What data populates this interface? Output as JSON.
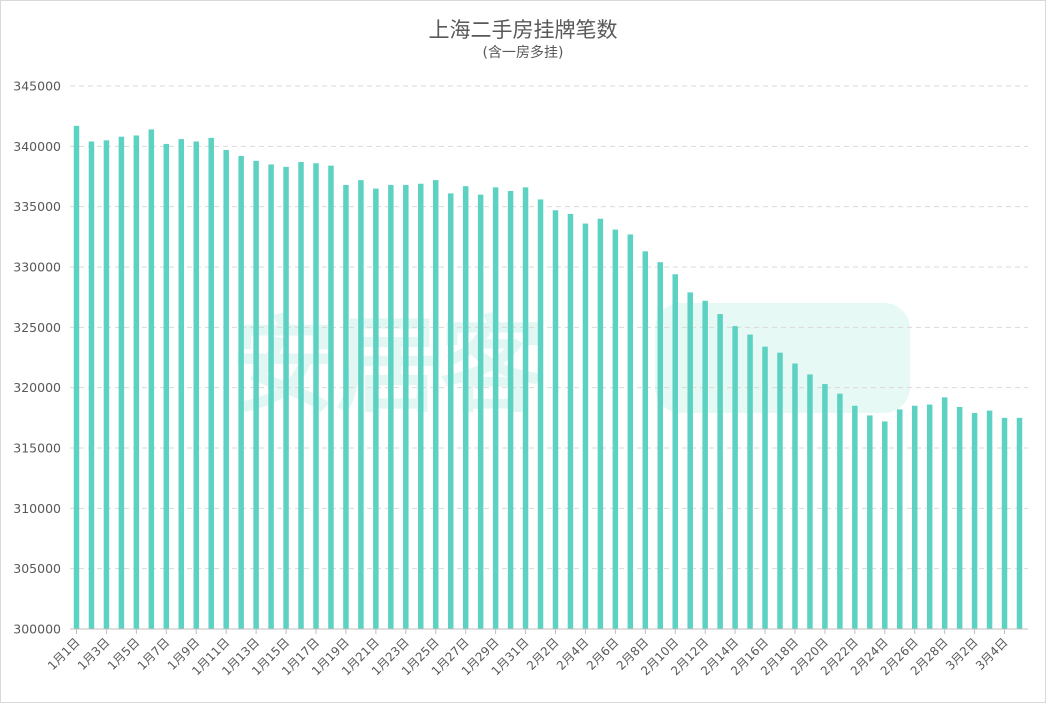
{
  "chart_data": {
    "type": "bar",
    "title": "上海二手房挂牌笔数",
    "subtitle": "(含一房多挂)",
    "xlabel": "",
    "ylabel": "",
    "ylim": [
      300000,
      345000
    ],
    "yticks": [
      300000,
      305000,
      310000,
      315000,
      320000,
      325000,
      330000,
      335000,
      340000,
      345000
    ],
    "grid": true,
    "bar_color": "#5dd2c3",
    "categories": [
      "1月1日",
      "1月2日",
      "1月3日",
      "1月4日",
      "1月5日",
      "1月6日",
      "1月7日",
      "1月8日",
      "1月9日",
      "1月10日",
      "1月11日",
      "1月12日",
      "1月13日",
      "1月14日",
      "1月15日",
      "1月16日",
      "1月17日",
      "1月18日",
      "1月19日",
      "1月20日",
      "1月21日",
      "1月22日",
      "1月23日",
      "1月24日",
      "1月25日",
      "1月26日",
      "1月27日",
      "1月28日",
      "1月29日",
      "1月30日",
      "1月31日",
      "2月1日",
      "2月2日",
      "2月3日",
      "2月4日",
      "2月5日",
      "2月6日",
      "2月7日",
      "2月8日",
      "2月9日",
      "2月10日",
      "2月11日",
      "2月12日",
      "2月13日",
      "2月14日",
      "2月15日",
      "2月16日",
      "2月17日",
      "2月18日",
      "2月19日",
      "2月20日",
      "2月21日",
      "2月22日",
      "2月23日",
      "2月24日",
      "2月25日",
      "2月26日",
      "2月27日",
      "2月28日",
      "3月1日",
      "3月2日",
      "3月3日",
      "3月4日",
      "3月5日"
    ],
    "values": [
      341700,
      340400,
      340500,
      340800,
      340900,
      341400,
      340200,
      340600,
      340400,
      340700,
      339700,
      339200,
      338800,
      338500,
      338300,
      338700,
      338600,
      338400,
      336800,
      337200,
      336500,
      336800,
      336800,
      336900,
      337200,
      336100,
      336700,
      336000,
      336600,
      336300,
      336600,
      335600,
      334700,
      334400,
      333600,
      334000,
      333100,
      332700,
      331300,
      330400,
      329400,
      327900,
      327200,
      326100,
      325100,
      324400,
      323400,
      322900,
      322000,
      321100,
      320300,
      319500,
      318500,
      317700,
      317200,
      318200,
      318500,
      318600,
      319200,
      318400,
      317900,
      318100,
      317500,
      317500
    ],
    "xtick_labels": [
      "1月1日",
      "1月3日",
      "1月5日",
      "1月7日",
      "1月9日",
      "1月11日",
      "1月13日",
      "1月15日",
      "1月17日",
      "1月19日",
      "1月21日",
      "1月23日",
      "1月25日",
      "1月27日",
      "1月29日",
      "1月31日",
      "2月2日",
      "2月4日",
      "2月6日",
      "2月8日",
      "2月10日",
      "2月12日",
      "2月14日",
      "2月16日",
      "2月18日",
      "2月20日",
      "2月22日",
      "2月24日",
      "2月26日",
      "2月28日",
      "3月2日",
      "3月4日"
    ]
  }
}
